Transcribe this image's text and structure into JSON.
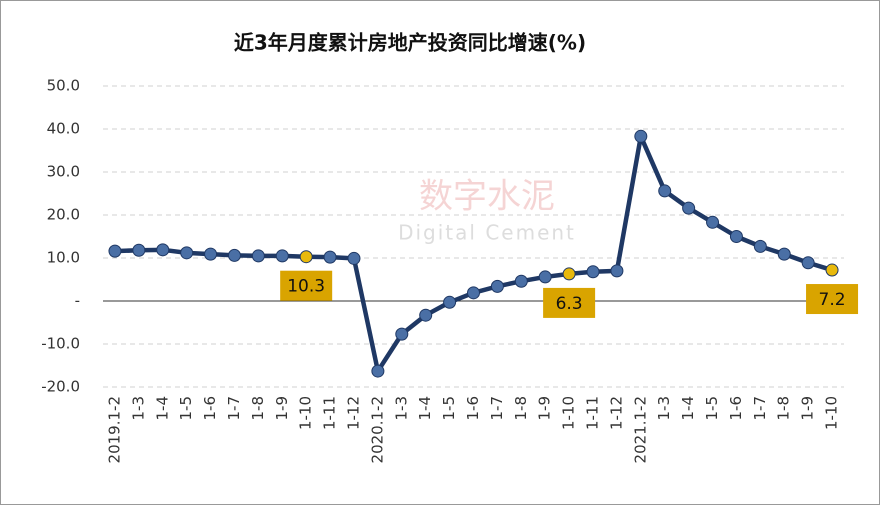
{
  "chart_data": {
    "type": "line",
    "title": "近3年月度累计房地产投资同比增速(%)",
    "watermark": [
      "数字水泥",
      "Digital Cement"
    ],
    "categories": [
      "2019.1-2",
      "1-3",
      "1-4",
      "1-5",
      "1-6",
      "1-7",
      "1-8",
      "1-9",
      "1-10",
      "1-11",
      "1-12",
      "2020.1-2",
      "1-3",
      "1-4",
      "1-5",
      "1-6",
      "1-7",
      "1-8",
      "1-9",
      "1-10",
      "1-11",
      "1-12",
      "2021.1-2",
      "1-3",
      "1-4",
      "1-5",
      "1-6",
      "1-7",
      "1-8",
      "1-9",
      "1-10"
    ],
    "series": [
      {
        "color": "#1f3864",
        "marker_color": "#4a6fa5",
        "highlight_color": "#e8b90c",
        "values": [
          11.6,
          11.8,
          11.9,
          11.2,
          10.9,
          10.6,
          10.5,
          10.5,
          10.3,
          10.2,
          9.9,
          -16.3,
          -7.7,
          -3.3,
          -0.3,
          1.9,
          3.4,
          4.6,
          5.6,
          6.3,
          6.8,
          7.0,
          38.3,
          25.6,
          21.6,
          18.3,
          15.0,
          12.7,
          10.9,
          8.9,
          7.2
        ],
        "value_labels": [
          null,
          null,
          null,
          null,
          null,
          null,
          null,
          null,
          "10.3",
          null,
          null,
          null,
          null,
          null,
          null,
          null,
          null,
          null,
          null,
          "6.3",
          null,
          null,
          null,
          null,
          null,
          null,
          null,
          null,
          null,
          null,
          "7.2"
        ]
      }
    ],
    "ylim": [
      -20,
      50
    ],
    "yticks": [
      {
        "value": -20,
        "label": "-20.0"
      },
      {
        "value": -10,
        "label": "-10.0"
      },
      {
        "value": 0,
        "label": "-"
      },
      {
        "value": 10,
        "label": "10.0"
      },
      {
        "value": 20,
        "label": "20.0"
      },
      {
        "value": 30,
        "label": "30.0"
      },
      {
        "value": 40,
        "label": "40.0"
      },
      {
        "value": 50,
        "label": "50.0"
      }
    ],
    "grid": true
  }
}
